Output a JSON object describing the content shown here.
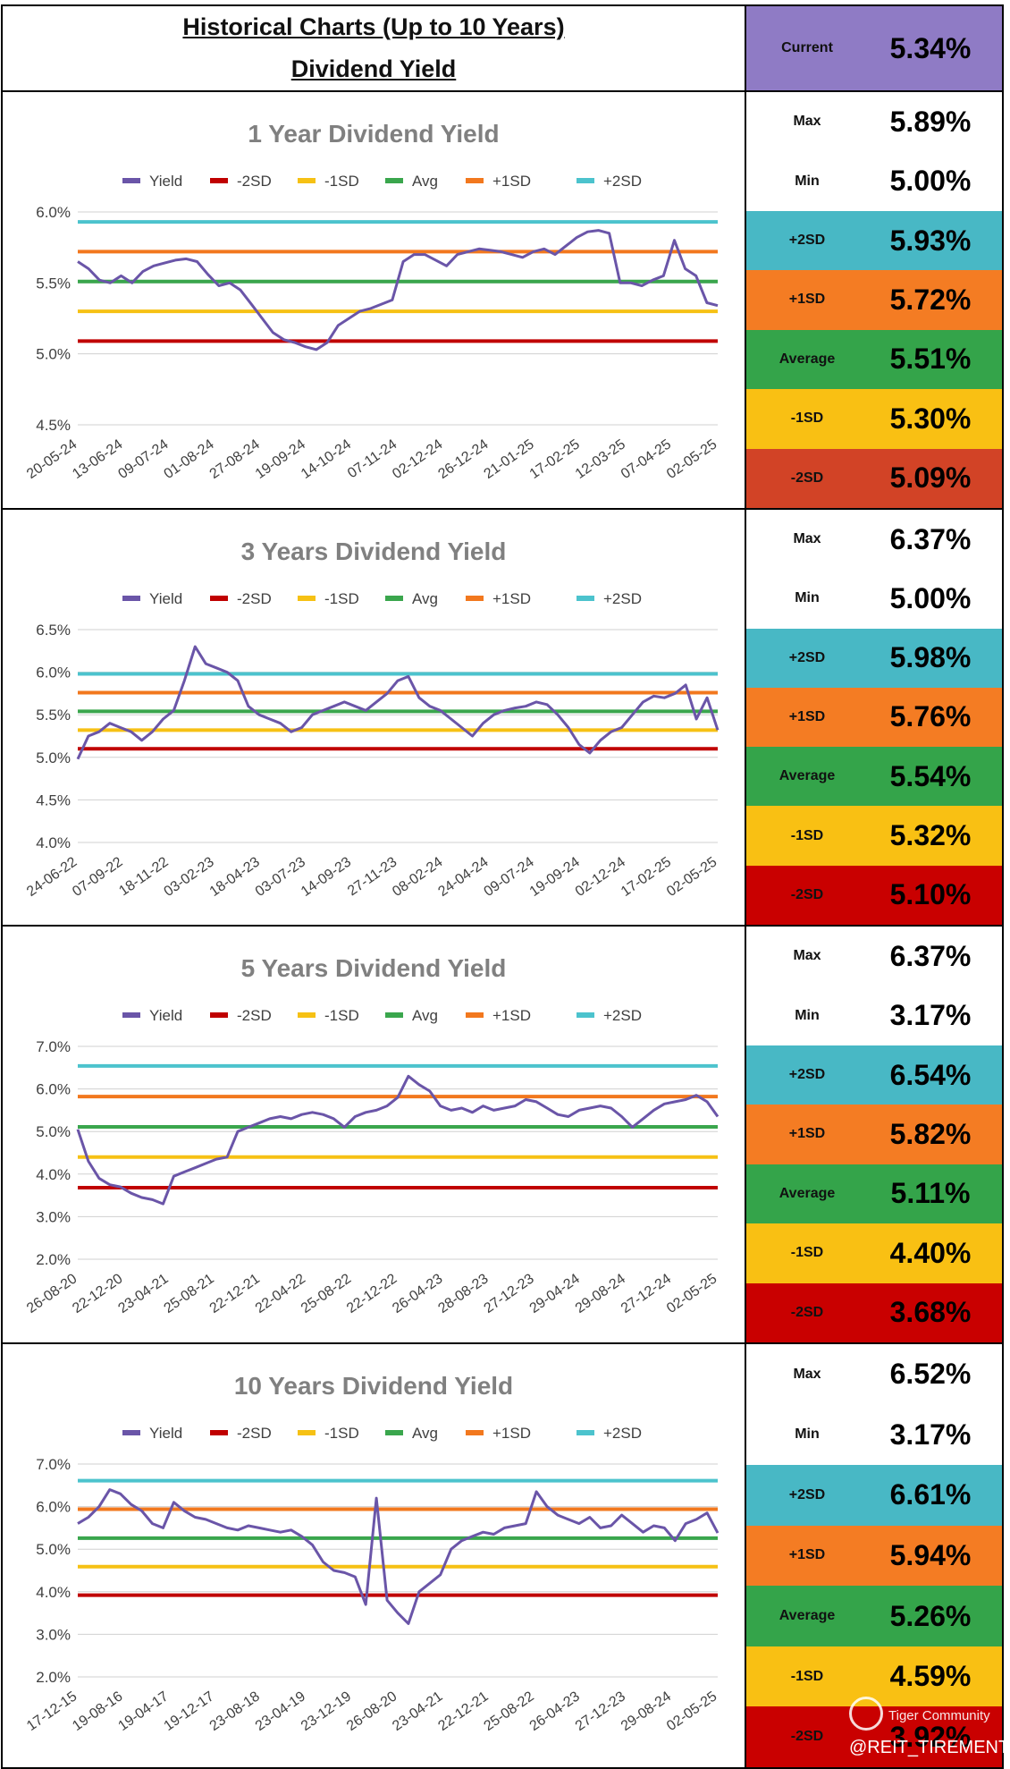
{
  "header": {
    "title_line1": "Historical Charts (Up to 10 Years)",
    "title_line2": "Dividend Yield",
    "current_label": "Current",
    "current_value": "5.34%",
    "current_color": "#8f7bc5"
  },
  "colors": {
    "yield": "#6a55a8",
    "minus2sd": "#c00000",
    "minus1sd": "#f6c114",
    "avg": "#3aa64d",
    "plus1sd": "#f2781e",
    "plus2sd": "#4cc3cd",
    "grid": "#d0d0d0",
    "title_gray": "#808080"
  },
  "legend": [
    "Yield",
    "-2SD",
    "-1SD",
    "Avg",
    "+1SD",
    "+2SD"
  ],
  "stat_colors": {
    "max": "#ffffff",
    "min": "#ffffff",
    "plus2sd": "#48b8c5",
    "plus1sd": "#f47c23",
    "average": "#34a44a",
    "minus1sd": "#f9c013",
    "minus2sd_1y": "#d24326",
    "minus2sd": "#c90000"
  },
  "watermark": {
    "brand": "Tiger Community",
    "handle": "@REIT_TIREMENT"
  },
  "chart_data": [
    {
      "type": "line",
      "title": "1 Year Dividend Yield",
      "yticks": [
        "6.0%",
        "5.5%",
        "5.0%",
        "4.5%"
      ],
      "ylim": [
        4.5,
        6.0
      ],
      "xticks": [
        "20-05-24",
        "13-06-24",
        "09-07-24",
        "01-08-24",
        "27-08-24",
        "19-09-24",
        "14-10-24",
        "07-11-24",
        "02-12-24",
        "26-12-24",
        "21-01-25",
        "17-02-25",
        "12-03-25",
        "07-04-25",
        "02-05-25"
      ],
      "series": [
        {
          "name": "Yield",
          "values": [
            5.65,
            5.6,
            5.52,
            5.5,
            5.55,
            5.5,
            5.58,
            5.62,
            5.64,
            5.66,
            5.67,
            5.65,
            5.56,
            5.48,
            5.5,
            5.45,
            5.35,
            5.25,
            5.15,
            5.1,
            5.08,
            5.05,
            5.03,
            5.08,
            5.2,
            5.25,
            5.3,
            5.32,
            5.35,
            5.38,
            5.65,
            5.7,
            5.7,
            5.66,
            5.62,
            5.7,
            5.72,
            5.74,
            5.73,
            5.72,
            5.7,
            5.68,
            5.72,
            5.74,
            5.7,
            5.76,
            5.82,
            5.86,
            5.87,
            5.85,
            5.5,
            5.5,
            5.48,
            5.52,
            5.55,
            5.8,
            5.6,
            5.55,
            5.36,
            5.34
          ]
        },
        {
          "name": "-2SD",
          "values": [
            5.09
          ]
        },
        {
          "name": "-1SD",
          "values": [
            5.3
          ]
        },
        {
          "name": "Avg",
          "values": [
            5.51
          ]
        },
        {
          "name": "+1SD",
          "values": [
            5.72
          ]
        },
        {
          "name": "+2SD",
          "values": [
            5.93
          ]
        }
      ],
      "stats": {
        "Max": "5.89%",
        "Min": "5.00%",
        "+2SD": "5.93%",
        "+1SD": "5.72%",
        "Average": "5.51%",
        "-1SD": "5.30%",
        "-2SD": "5.09%"
      }
    },
    {
      "type": "line",
      "title": "3 Years Dividend Yield",
      "yticks": [
        "6.5%",
        "6.0%",
        "5.5%",
        "5.0%",
        "4.5%",
        "4.0%"
      ],
      "ylim": [
        4.0,
        6.5
      ],
      "xticks": [
        "24-06-22",
        "07-09-22",
        "18-11-22",
        "03-02-23",
        "18-04-23",
        "03-07-23",
        "14-09-23",
        "27-11-23",
        "08-02-24",
        "24-04-24",
        "09-07-24",
        "19-09-24",
        "02-12-24",
        "17-02-25",
        "02-05-25"
      ],
      "series": [
        {
          "name": "Yield",
          "values": [
            4.98,
            5.25,
            5.3,
            5.4,
            5.35,
            5.3,
            5.2,
            5.3,
            5.45,
            5.55,
            5.9,
            6.3,
            6.1,
            6.05,
            6.0,
            5.9,
            5.6,
            5.5,
            5.45,
            5.4,
            5.3,
            5.35,
            5.5,
            5.55,
            5.6,
            5.65,
            5.6,
            5.55,
            5.65,
            5.75,
            5.9,
            5.95,
            5.7,
            5.6,
            5.55,
            5.45,
            5.35,
            5.25,
            5.4,
            5.5,
            5.55,
            5.58,
            5.6,
            5.65,
            5.62,
            5.5,
            5.35,
            5.15,
            5.05,
            5.2,
            5.3,
            5.35,
            5.5,
            5.65,
            5.72,
            5.7,
            5.75,
            5.85,
            5.45,
            5.7,
            5.32
          ]
        },
        {
          "name": "-2SD",
          "values": [
            5.1
          ]
        },
        {
          "name": "-1SD",
          "values": [
            5.32
          ]
        },
        {
          "name": "Avg",
          "values": [
            5.54
          ]
        },
        {
          "name": "+1SD",
          "values": [
            5.76
          ]
        },
        {
          "name": "+2SD",
          "values": [
            5.98
          ]
        }
      ],
      "stats": {
        "Max": "6.37%",
        "Min": "5.00%",
        "+2SD": "5.98%",
        "+1SD": "5.76%",
        "Average": "5.54%",
        "-1SD": "5.32%",
        "-2SD": "5.10%"
      }
    },
    {
      "type": "line",
      "title": "5 Years Dividend Yield",
      "yticks": [
        "7.0%",
        "6.0%",
        "5.0%",
        "4.0%",
        "3.0%",
        "2.0%"
      ],
      "ylim": [
        2.0,
        7.0
      ],
      "xticks": [
        "26-08-20",
        "22-12-20",
        "23-04-21",
        "25-08-21",
        "22-12-21",
        "22-04-22",
        "25-08-22",
        "22-12-22",
        "26-04-23",
        "28-08-23",
        "27-12-23",
        "29-04-24",
        "29-08-24",
        "27-12-24",
        "02-05-25"
      ],
      "series": [
        {
          "name": "Yield",
          "values": [
            5.05,
            4.3,
            3.9,
            3.75,
            3.7,
            3.55,
            3.45,
            3.4,
            3.3,
            3.95,
            4.05,
            4.15,
            4.25,
            4.35,
            4.4,
            5.0,
            5.1,
            5.2,
            5.3,
            5.35,
            5.3,
            5.4,
            5.45,
            5.4,
            5.3,
            5.1,
            5.35,
            5.45,
            5.5,
            5.6,
            5.8,
            6.3,
            6.1,
            5.95,
            5.6,
            5.5,
            5.55,
            5.45,
            5.6,
            5.5,
            5.55,
            5.6,
            5.75,
            5.7,
            5.55,
            5.4,
            5.35,
            5.5,
            5.55,
            5.6,
            5.55,
            5.35,
            5.1,
            5.3,
            5.5,
            5.65,
            5.7,
            5.75,
            5.85,
            5.7,
            5.35
          ]
        },
        {
          "name": "-2SD",
          "values": [
            3.68
          ]
        },
        {
          "name": "-1SD",
          "values": [
            4.4
          ]
        },
        {
          "name": "Avg",
          "values": [
            5.11
          ]
        },
        {
          "name": "+1SD",
          "values": [
            5.82
          ]
        },
        {
          "name": "+2SD",
          "values": [
            6.54
          ]
        }
      ],
      "stats": {
        "Max": "6.37%",
        "Min": "3.17%",
        "+2SD": "6.54%",
        "+1SD": "5.82%",
        "Average": "5.11%",
        "-1SD": "4.40%",
        "-2SD": "3.68%"
      }
    },
    {
      "type": "line",
      "title": "10 Years Dividend Yield",
      "yticks": [
        "7.0%",
        "6.0%",
        "5.0%",
        "4.0%",
        "3.0%",
        "2.0%"
      ],
      "ylim": [
        2.0,
        7.0
      ],
      "xticks": [
        "17-12-15",
        "19-08-16",
        "19-04-17",
        "19-12-17",
        "23-08-18",
        "23-04-19",
        "23-12-19",
        "26-08-20",
        "23-04-21",
        "22-12-21",
        "25-08-22",
        "26-04-23",
        "27-12-23",
        "29-08-24",
        "02-05-25"
      ],
      "series": [
        {
          "name": "Yield",
          "values": [
            5.6,
            5.75,
            6.0,
            6.4,
            6.3,
            6.05,
            5.9,
            5.6,
            5.5,
            6.1,
            5.9,
            5.75,
            5.7,
            5.6,
            5.5,
            5.45,
            5.55,
            5.5,
            5.45,
            5.4,
            5.45,
            5.3,
            5.1,
            4.7,
            4.5,
            4.45,
            4.35,
            3.7,
            6.2,
            3.8,
            3.5,
            3.25,
            4.0,
            4.2,
            4.4,
            5.0,
            5.2,
            5.3,
            5.4,
            5.35,
            5.5,
            5.55,
            5.6,
            6.35,
            6.0,
            5.8,
            5.7,
            5.6,
            5.75,
            5.5,
            5.55,
            5.8,
            5.6,
            5.4,
            5.55,
            5.5,
            5.2,
            5.6,
            5.7,
            5.85,
            5.38
          ]
        },
        {
          "name": "-2SD",
          "values": [
            3.92
          ]
        },
        {
          "name": "-1SD",
          "values": [
            4.59
          ]
        },
        {
          "name": "Avg",
          "values": [
            5.26
          ]
        },
        {
          "name": "+1SD",
          "values": [
            5.94
          ]
        },
        {
          "name": "+2SD",
          "values": [
            6.61
          ]
        }
      ],
      "stats": {
        "Max": "6.52%",
        "Min": "3.17%",
        "+2SD": "6.61%",
        "+1SD": "5.94%",
        "Average": "5.26%",
        "-1SD": "4.59%",
        "-2SD": "3.92%"
      }
    }
  ]
}
